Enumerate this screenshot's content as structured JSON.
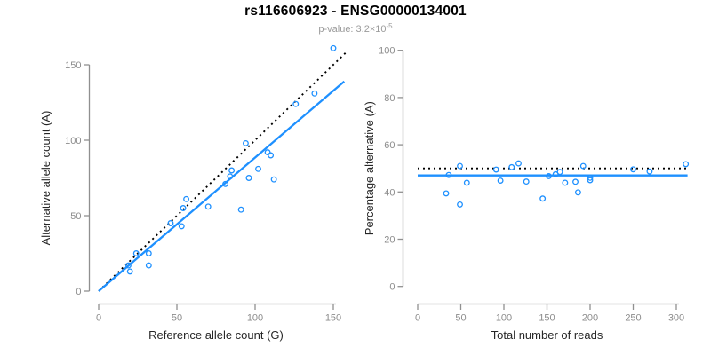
{
  "header": {
    "title": "rs116606923 - ENSG00000134001",
    "subtitle_prefix": "p-value: 3.2×10",
    "subtitle_exponent": "-5"
  },
  "colors": {
    "point_blue": "#1E90FF",
    "fit_line_blue": "#1E90FF",
    "dotted_line_black": "#000000",
    "axis_gray": "#909090",
    "tick_label_gray": "#8c8c8c",
    "axis_title_black": "#262626",
    "title_black": "#000000",
    "subtitle_gray": "#9b9b9b"
  },
  "chart_data": [
    {
      "type": "scatter",
      "name": "reference-vs-alternative-counts",
      "xlabel": "Reference allele count (G)",
      "ylabel": "Alternative allele count (A)",
      "xlim": [
        0,
        150
      ],
      "ylim": [
        0,
        150
      ],
      "xticks": [
        0,
        50,
        100,
        150
      ],
      "yticks": [
        0,
        50,
        100,
        150
      ],
      "grid": false,
      "legend": false,
      "points": [
        [
          19,
          17
        ],
        [
          20,
          13
        ],
        [
          24,
          25
        ],
        [
          32,
          25
        ],
        [
          32,
          17
        ],
        [
          46,
          45
        ],
        [
          53,
          43
        ],
        [
          54,
          55
        ],
        [
          56,
          61
        ],
        [
          70,
          56
        ],
        [
          81,
          71
        ],
        [
          84,
          76
        ],
        [
          85,
          80
        ],
        [
          91,
          54
        ],
        [
          94,
          98
        ],
        [
          96,
          75
        ],
        [
          102,
          81
        ],
        [
          108,
          92
        ],
        [
          110,
          90
        ],
        [
          112,
          74
        ],
        [
          126,
          124
        ],
        [
          138,
          131
        ],
        [
          150,
          161
        ]
      ],
      "lines": [
        {
          "name": "identity-line",
          "style": "dotted",
          "color": "#000000",
          "from": [
            0,
            0
          ],
          "to": [
            158,
            158
          ]
        },
        {
          "name": "fit-line",
          "style": "solid",
          "color": "#1E90FF",
          "from": [
            0,
            0
          ],
          "to": [
            157,
            139
          ]
        }
      ]
    },
    {
      "type": "scatter",
      "name": "percentage-alternative-vs-total-reads",
      "xlabel": "Total number of reads",
      "ylabel": "Percentage alternative (A)",
      "xlim": [
        0,
        300
      ],
      "ylim": [
        0,
        100
      ],
      "xticks": [
        0,
        50,
        100,
        150,
        200,
        250,
        300
      ],
      "yticks": [
        0,
        20,
        40,
        60,
        80,
        100
      ],
      "grid": false,
      "legend": false,
      "points": [
        [
          36,
          47.2
        ],
        [
          33,
          39.4
        ],
        [
          49,
          51.0
        ],
        [
          57,
          43.9
        ],
        [
          49,
          34.7
        ],
        [
          91,
          49.5
        ],
        [
          96,
          44.8
        ],
        [
          109,
          50.5
        ],
        [
          117,
          52.1
        ],
        [
          126,
          44.4
        ],
        [
          152,
          46.7
        ],
        [
          160,
          47.5
        ],
        [
          165,
          48.5
        ],
        [
          145,
          37.2
        ],
        [
          192,
          51.0
        ],
        [
          171,
          43.9
        ],
        [
          183,
          44.3
        ],
        [
          200,
          46.0
        ],
        [
          200,
          45.0
        ],
        [
          186,
          39.8
        ],
        [
          250,
          49.6
        ],
        [
          269,
          48.7
        ],
        [
          311,
          51.8
        ]
      ],
      "lines": [
        {
          "name": "expected-50pct-line",
          "style": "dotted",
          "color": "#000000",
          "from": [
            0,
            50
          ],
          "to": [
            313,
            50
          ]
        },
        {
          "name": "fit-line",
          "style": "solid",
          "color": "#1E90FF",
          "from": [
            0,
            47
          ],
          "to": [
            313,
            47
          ]
        }
      ]
    }
  ]
}
